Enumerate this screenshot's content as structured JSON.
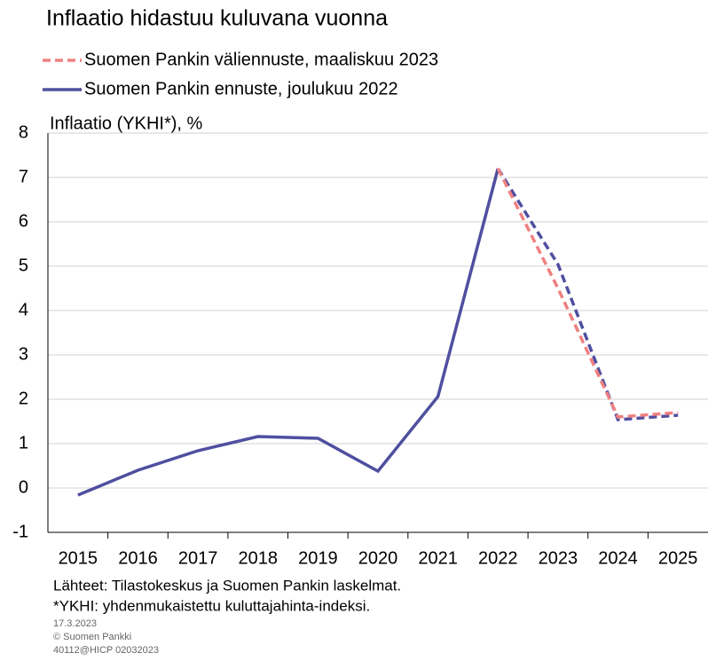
{
  "chart_data": {
    "type": "line",
    "title": "Inflaatio hidastuu kuluvana vuonna",
    "y_label": "Inflaatio (YKHI*), %",
    "categories": [
      "2015",
      "2016",
      "2017",
      "2018",
      "2019",
      "2020",
      "2021",
      "2022",
      "2023",
      "2024",
      "2025"
    ],
    "series": [
      {
        "name": "Suomen Pankin väliennuste, maaliskuu 2023",
        "color": "#f08080",
        "dashed": true,
        "values": [
          null,
          null,
          null,
          null,
          null,
          null,
          null,
          7.2,
          4.5,
          1.6,
          1.7
        ]
      },
      {
        "name": "Suomen Pankin ennuste, joulukuu 2022",
        "color": "#4f4fa0",
        "dashed": false,
        "dash_from": 7,
        "values": [
          -0.16,
          0.4,
          0.84,
          1.16,
          1.12,
          0.38,
          2.06,
          7.2,
          5.04,
          1.54,
          1.64
        ]
      }
    ],
    "ylim": [
      -1,
      8
    ],
    "yticks": [
      -1,
      0,
      1,
      2,
      3,
      4,
      5,
      6,
      7,
      8
    ],
    "grid": true,
    "footer": {
      "sources": "Lähteet: Tilastokeskus ja Suomen Pankin laskelmat.",
      "note": "*YKHI: yhdenmukaistettu kuluttajahinta-indeksi.",
      "date": "17.3.2023",
      "copyright": "© Suomen Pankki",
      "code": "40112@HICP  02032023"
    }
  }
}
